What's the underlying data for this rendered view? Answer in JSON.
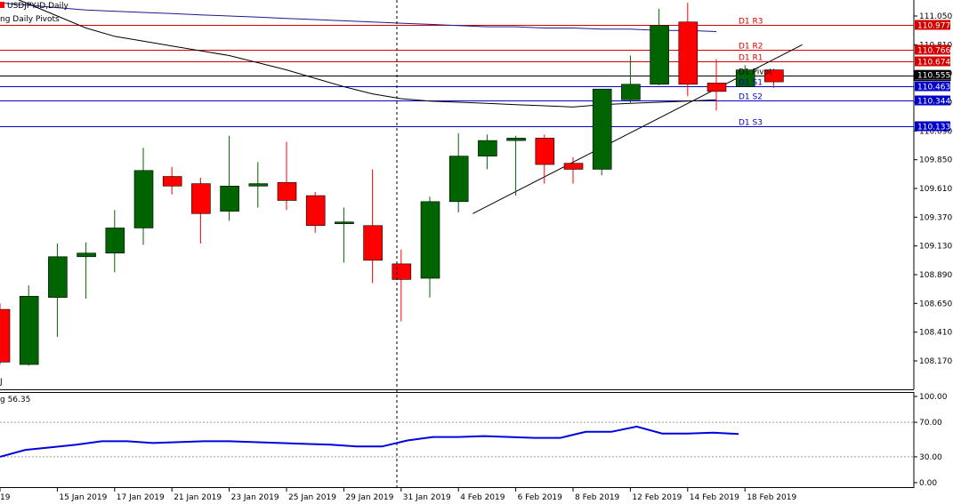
{
  "header": {
    "symbol_line": "USDJPY.ID,Daily",
    "indicator_line": "ng Daily Pivots"
  },
  "rsi": {
    "label": "g 56.35",
    "levels": [
      100.0,
      70.0,
      30.0,
      0.0
    ],
    "level_labels": [
      "100.00",
      "70.00",
      "30.00",
      "0.00"
    ],
    "values": [
      30,
      38,
      41,
      44,
      48,
      48,
      46,
      47,
      48,
      48,
      47,
      46,
      45,
      44,
      42,
      42,
      49,
      53,
      53,
      54,
      53,
      52,
      52,
      59,
      59,
      65,
      57,
      57,
      58,
      56.35
    ]
  },
  "price_axis": {
    "ticks": [
      "111.050",
      "110.810",
      "110.570",
      "110.330",
      "110.090",
      "109.850",
      "109.610",
      "109.370",
      "109.130",
      "108.890",
      "108.650",
      "108.410",
      "108.170"
    ],
    "current_price": "110.555"
  },
  "pivots": [
    {
      "name": "D1 R3",
      "value": "110.977",
      "type": "resistance"
    },
    {
      "name": "D1 R2",
      "value": "110.766",
      "type": "resistance"
    },
    {
      "name": "D1 R1",
      "value": "110.674",
      "type": "resistance"
    },
    {
      "name": "D1 Pivot",
      "value": "110.555",
      "type": "pivot"
    },
    {
      "name": "D1 S1",
      "value": "110.463",
      "type": "support"
    },
    {
      "name": "D1 S2",
      "value": "110.344",
      "type": "support"
    },
    {
      "name": "D1 S3",
      "value": "110.133",
      "type": "support"
    }
  ],
  "colors": {
    "bull": "#006400",
    "bear": "#ff0000",
    "resistance": "#d40000",
    "support": "#0000c8",
    "pivot": "#000000",
    "rsi_line": "#0000e0",
    "trend": "#000000",
    "ma_slow": "#1a1a8c",
    "ma_fast": "#000000"
  },
  "chart_data": {
    "type": "candlestick",
    "title": "USDJPY.ID,Daily",
    "ylim": [
      108.0,
      111.2
    ],
    "date_labels": [
      "",
      "15 Jan 2019",
      "17 Jan 2019",
      "21 Jan 2019",
      "23 Jan 2019",
      "25 Jan 2019",
      "29 Jan 2019",
      "31 Jan 2019",
      "4 Feb 2019",
      "6 Feb 2019",
      "8 Feb 2019",
      "12 Feb 2019",
      "14 Feb 2019",
      "18 Feb 2019"
    ],
    "candles": [
      {
        "o": 108.6,
        "h": 108.65,
        "l": 108.14,
        "c": 108.16
      },
      {
        "o": 108.14,
        "h": 108.8,
        "l": 108.13,
        "c": 108.71
      },
      {
        "o": 108.7,
        "h": 109.15,
        "l": 108.37,
        "c": 109.04
      },
      {
        "o": 109.04,
        "h": 109.16,
        "l": 108.69,
        "c": 109.07
      },
      {
        "o": 109.07,
        "h": 109.43,
        "l": 108.91,
        "c": 109.28
      },
      {
        "o": 109.28,
        "h": 109.95,
        "l": 109.14,
        "c": 109.76
      },
      {
        "o": 109.71,
        "h": 109.79,
        "l": 109.56,
        "c": 109.63
      },
      {
        "o": 109.65,
        "h": 109.7,
        "l": 109.15,
        "c": 109.4
      },
      {
        "o": 109.42,
        "h": 110.05,
        "l": 109.34,
        "c": 109.63
      },
      {
        "o": 109.63,
        "h": 109.83,
        "l": 109.45,
        "c": 109.65
      },
      {
        "o": 109.66,
        "h": 110.0,
        "l": 109.43,
        "c": 109.51
      },
      {
        "o": 109.55,
        "h": 109.58,
        "l": 109.24,
        "c": 109.3
      },
      {
        "o": 109.33,
        "h": 109.45,
        "l": 108.99,
        "c": 109.33
      },
      {
        "o": 109.3,
        "h": 109.77,
        "l": 108.82,
        "c": 109.01
      },
      {
        "o": 108.98,
        "h": 109.1,
        "l": 108.5,
        "c": 108.85
      },
      {
        "o": 108.86,
        "h": 109.54,
        "l": 108.7,
        "c": 109.5
      },
      {
        "o": 109.5,
        "h": 110.07,
        "l": 109.41,
        "c": 109.88
      },
      {
        "o": 109.88,
        "h": 110.06,
        "l": 109.77,
        "c": 110.01
      },
      {
        "o": 110.01,
        "h": 110.05,
        "l": 109.55,
        "c": 110.03
      },
      {
        "o": 110.03,
        "h": 110.06,
        "l": 109.65,
        "c": 109.81
      },
      {
        "o": 109.82,
        "h": 109.87,
        "l": 109.65,
        "c": 109.77
      },
      {
        "o": 109.77,
        "h": 110.44,
        "l": 109.72,
        "c": 110.44
      },
      {
        "o": 110.35,
        "h": 110.72,
        "l": 110.32,
        "c": 110.48
      },
      {
        "o": 110.48,
        "h": 111.11,
        "l": 110.47,
        "c": 110.97
      },
      {
        "o": 111.0,
        "h": 111.16,
        "l": 110.38,
        "c": 110.48
      },
      {
        "o": 110.49,
        "h": 110.69,
        "l": 110.26,
        "c": 110.42
      },
      {
        "o": 110.46,
        "h": 110.64,
        "l": 110.46,
        "c": 110.6
      },
      {
        "o": 110.6,
        "h": 110.61,
        "l": 110.45,
        "c": 110.5
      }
    ],
    "moving_average_slow": [
      111.16,
      111.14,
      111.12,
      111.1,
      111.09,
      111.08,
      111.07,
      111.06,
      111.05,
      111.04,
      111.03,
      111.02,
      111.01,
      111.0,
      110.99,
      110.98,
      110.97,
      110.96,
      110.96,
      110.95,
      110.95,
      110.94,
      110.94,
      110.93,
      110.93,
      110.92
    ],
    "moving_average_fast": [
      111.25,
      111.15,
      111.05,
      110.95,
      110.88,
      110.84,
      110.8,
      110.76,
      110.72,
      110.66,
      110.6,
      110.53,
      110.46,
      110.4,
      110.36,
      110.34,
      110.33,
      110.32,
      110.31,
      110.3,
      110.29,
      110.31,
      110.32,
      110.33,
      110.34,
      110.35
    ],
    "trendline": {
      "from": [
        16.5,
        109.4
      ],
      "to": [
        28.0,
        110.81
      ]
    }
  }
}
